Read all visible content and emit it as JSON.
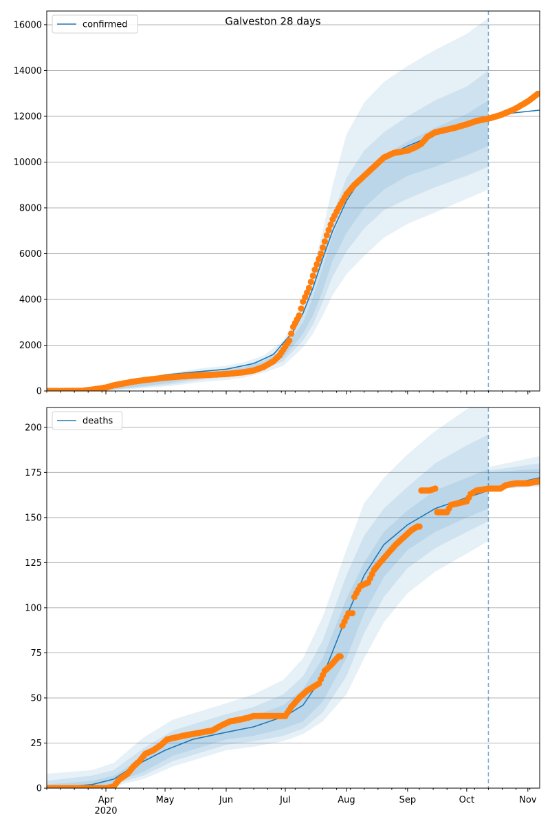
{
  "figure_title": "Galveston 28 days",
  "chart_data": [
    {
      "type": "line",
      "legend": "confirmed",
      "legend_position": "top-left",
      "grid": "horizontal",
      "ylim": [
        0,
        16600
      ],
      "yticks": [
        0,
        2000,
        4000,
        6000,
        8000,
        10000,
        12000,
        14000,
        16000
      ],
      "x_range": [
        "2020-03-02",
        "2020-11-07"
      ],
      "forecast_date": "2020-10-12",
      "colors": {
        "model": "#1f77b4",
        "observed": "#ff7f0e",
        "band": "#1f77b4"
      },
      "model": [
        [
          "2020-03-02",
          0
        ],
        [
          "2020-03-15",
          10
        ],
        [
          "2020-03-25",
          80
        ],
        [
          "2020-04-05",
          250
        ],
        [
          "2020-04-15",
          450
        ],
        [
          "2020-05-01",
          700
        ],
        [
          "2020-05-15",
          820
        ],
        [
          "2020-06-01",
          950
        ],
        [
          "2020-06-15",
          1200
        ],
        [
          "2020-06-25",
          1600
        ],
        [
          "2020-07-05",
          2600
        ],
        [
          "2020-07-10",
          3400
        ],
        [
          "2020-07-15",
          4500
        ],
        [
          "2020-07-20",
          5800
        ],
        [
          "2020-07-25",
          7000
        ],
        [
          "2020-08-01",
          8300
        ],
        [
          "2020-08-10",
          9500
        ],
        [
          "2020-08-20",
          10200
        ],
        [
          "2020-09-01",
          10700
        ],
        [
          "2020-09-15",
          11200
        ],
        [
          "2020-10-01",
          11700
        ],
        [
          "2020-10-12",
          11950
        ],
        [
          "2020-10-25",
          12150
        ],
        [
          "2020-11-07",
          12270
        ]
      ],
      "bands": [
        {
          "lower": [
            0,
            0,
            40,
            120,
            230,
            400,
            480,
            580,
            800,
            1100,
            1900,
            2500,
            3300,
            4200,
            5100,
            5900,
            6700,
            7300,
            7800,
            8400,
            8800,
            9000
          ],
          "upper": [
            0,
            60,
            280,
            550,
            800,
            1000,
            1100,
            1250,
            1550,
            2200,
            3900,
            5300,
            7000,
            9000,
            11200,
            12600,
            13500,
            14200,
            14900,
            15600,
            16300,
            16800
          ]
        },
        {
          "lower": [
            0,
            0,
            55,
            170,
            300,
            500,
            600,
            720,
            960,
            1300,
            2200,
            2900,
            3900,
            5000,
            6100,
            7100,
            7900,
            8400,
            8900,
            9400,
            9800,
            9900
          ],
          "upper": [
            0,
            40,
            200,
            440,
            660,
            880,
            990,
            1130,
            1400,
            1950,
            3400,
            4600,
            6100,
            7700,
            9300,
            10500,
            11300,
            12000,
            12700,
            13300,
            14000,
            14600
          ]
        },
        {
          "lower": [
            0,
            0,
            70,
            210,
            380,
            600,
            720,
            850,
            1100,
            1450,
            2500,
            3300,
            4400,
            5700,
            6900,
            8000,
            8800,
            9400,
            9800,
            10300,
            10700,
            10900
          ],
          "upper": [
            0,
            25,
            150,
            350,
            560,
            780,
            900,
            1030,
            1300,
            1800,
            3000,
            4100,
            5400,
            6800,
            8200,
            9500,
            10300,
            10900,
            11500,
            12100,
            12700,
            13200
          ]
        }
      ],
      "band_dates": [
        "2020-03-02",
        "2020-03-20",
        "2020-04-05",
        "2020-04-20",
        "2020-05-05",
        "2020-05-20",
        "2020-06-01",
        "2020-06-10",
        "2020-06-20",
        "2020-06-30",
        "2020-07-10",
        "2020-07-15",
        "2020-07-20",
        "2020-07-25",
        "2020-08-01",
        "2020-08-10",
        "2020-08-20",
        "2020-09-01",
        "2020-09-15",
        "2020-10-01",
        "2020-10-12",
        "2020-10-12"
      ],
      "observed": [
        [
          "2020-03-02",
          0
        ],
        [
          "2020-03-10",
          0
        ],
        [
          "2020-03-20",
          10
        ],
        [
          "2020-03-25",
          60
        ],
        [
          "2020-04-01",
          150
        ],
        [
          "2020-04-05",
          250
        ],
        [
          "2020-04-10",
          330
        ],
        [
          "2020-04-15",
          410
        ],
        [
          "2020-04-20",
          470
        ],
        [
          "2020-04-25",
          520
        ],
        [
          "2020-05-01",
          580
        ],
        [
          "2020-05-10",
          640
        ],
        [
          "2020-05-20",
          690
        ],
        [
          "2020-06-01",
          740
        ],
        [
          "2020-06-10",
          820
        ],
        [
          "2020-06-15",
          900
        ],
        [
          "2020-06-20",
          1050
        ],
        [
          "2020-06-25",
          1300
        ],
        [
          "2020-06-28",
          1550
        ],
        [
          "2020-07-01",
          1950
        ],
        [
          "2020-07-03",
          2200
        ],
        [
          "2020-07-05",
          2800
        ],
        [
          "2020-07-08",
          3300
        ],
        [
          "2020-07-10",
          3900
        ],
        [
          "2020-07-13",
          4500
        ],
        [
          "2020-07-16",
          5300
        ],
        [
          "2020-07-19",
          6000
        ],
        [
          "2020-07-22",
          6800
        ],
        [
          "2020-07-25",
          7500
        ],
        [
          "2020-07-28",
          8000
        ],
        [
          "2020-08-01",
          8600
        ],
        [
          "2020-08-05",
          9000
        ],
        [
          "2020-08-10",
          9400
        ],
        [
          "2020-08-15",
          9800
        ],
        [
          "2020-08-20",
          10200
        ],
        [
          "2020-08-25",
          10400
        ],
        [
          "2020-09-01",
          10500
        ],
        [
          "2020-09-05",
          10650
        ],
        [
          "2020-09-08",
          10800
        ],
        [
          "2020-09-11",
          11100
        ],
        [
          "2020-09-15",
          11300
        ],
        [
          "2020-09-20",
          11400
        ],
        [
          "2020-09-25",
          11500
        ],
        [
          "2020-10-01",
          11650
        ],
        [
          "2020-10-06",
          11800
        ],
        [
          "2020-10-12",
          11900
        ],
        [
          "2020-10-18",
          12050
        ],
        [
          "2020-10-25",
          12300
        ],
        [
          "2020-11-01",
          12650
        ],
        [
          "2020-11-06",
          12980
        ]
      ]
    },
    {
      "type": "line",
      "legend": "deaths",
      "legend_position": "top-left",
      "grid": "horizontal",
      "ylim": [
        0,
        211
      ],
      "yticks": [
        0,
        25,
        50,
        75,
        100,
        125,
        150,
        175,
        200
      ],
      "x_range": [
        "2020-03-02",
        "2020-11-07"
      ],
      "xticks": [
        {
          "date": "2020-04-01",
          "label": "Apr"
        },
        {
          "date": "2020-05-01",
          "label": "May"
        },
        {
          "date": "2020-06-01",
          "label": "Jun"
        },
        {
          "date": "2020-07-01",
          "label": "Jul"
        },
        {
          "date": "2020-08-01",
          "label": "Aug"
        },
        {
          "date": "2020-09-01",
          "label": "Sep"
        },
        {
          "date": "2020-10-01",
          "label": "Oct"
        },
        {
          "date": "2020-11-01",
          "label": "Nov"
        }
      ],
      "year_label": "2020",
      "forecast_date": "2020-10-12",
      "colors": {
        "model": "#1f77b4",
        "observed": "#ff7f0e",
        "band": "#1f77b4"
      },
      "model": [
        [
          "2020-03-02",
          0
        ],
        [
          "2020-03-25",
          2
        ],
        [
          "2020-04-05",
          5
        ],
        [
          "2020-04-15",
          12
        ],
        [
          "2020-05-01",
          21
        ],
        [
          "2020-05-15",
          27
        ],
        [
          "2020-06-01",
          31
        ],
        [
          "2020-06-15",
          34
        ],
        [
          "2020-07-01",
          40
        ],
        [
          "2020-07-10",
          46
        ],
        [
          "2020-07-20",
          62
        ],
        [
          "2020-08-01",
          95
        ],
        [
          "2020-08-10",
          118
        ],
        [
          "2020-08-20",
          135
        ],
        [
          "2020-09-01",
          146
        ],
        [
          "2020-09-15",
          155
        ],
        [
          "2020-10-01",
          161
        ],
        [
          "2020-10-12",
          165
        ],
        [
          "2020-10-25",
          169
        ],
        [
          "2020-11-07",
          172
        ]
      ],
      "bands": [
        {
          "lower": [
            0,
            0,
            1,
            5,
            12,
            17,
            21,
            23,
            26,
            30,
            37,
            52,
            72,
            92,
            108,
            120,
            130,
            137,
            165,
            168
          ],
          "upper": [
            8,
            10,
            14,
            28,
            38,
            43,
            47,
            52,
            60,
            72,
            95,
            132,
            158,
            172,
            185,
            198,
            210,
            215,
            178,
            184
          ]
        },
        {
          "lower": [
            0,
            0,
            2,
            7,
            15,
            20,
            24,
            26,
            29,
            33,
            42,
            62,
            86,
            106,
            122,
            133,
            142,
            148,
            166,
            167
          ],
          "upper": [
            4,
            7,
            10,
            22,
            32,
            37,
            41,
            45,
            52,
            62,
            82,
            118,
            140,
            155,
            167,
            180,
            190,
            196,
            176,
            180
          ]
        },
        {
          "lower": [
            0,
            0,
            3,
            9,
            18,
            23,
            27,
            29,
            33,
            37,
            48,
            72,
            97,
            117,
            132,
            142,
            150,
            155,
            167,
            168
          ],
          "upper": [
            2,
            4,
            7,
            17,
            27,
            32,
            36,
            40,
            46,
            55,
            72,
            105,
            125,
            142,
            154,
            165,
            172,
            177,
            175,
            177
          ]
        }
      ],
      "band_dates": [
        "2020-03-02",
        "2020-03-25",
        "2020-04-05",
        "2020-04-20",
        "2020-05-05",
        "2020-05-20",
        "2020-06-01",
        "2020-06-15",
        "2020-06-30",
        "2020-07-10",
        "2020-07-20",
        "2020-08-01",
        "2020-08-10",
        "2020-08-20",
        "2020-09-01",
        "2020-09-15",
        "2020-10-01",
        "2020-10-12",
        "2020-10-12",
        "2020-11-07"
      ],
      "observed": [
        [
          "2020-03-02",
          0
        ],
        [
          "2020-03-15",
          0
        ],
        [
          "2020-04-01",
          0
        ],
        [
          "2020-04-05",
          1
        ],
        [
          "2020-04-08",
          5
        ],
        [
          "2020-04-12",
          8
        ],
        [
          "2020-04-15",
          12
        ],
        [
          "2020-04-18",
          15
        ],
        [
          "2020-04-21",
          19
        ],
        [
          "2020-04-25",
          21
        ],
        [
          "2020-04-29",
          24
        ],
        [
          "2020-05-02",
          27
        ],
        [
          "2020-05-06",
          28
        ],
        [
          "2020-05-10",
          29
        ],
        [
          "2020-05-15",
          30
        ],
        [
          "2020-05-20",
          31
        ],
        [
          "2020-05-25",
          32
        ],
        [
          "2020-05-30",
          35
        ],
        [
          "2020-06-03",
          37
        ],
        [
          "2020-06-08",
          38
        ],
        [
          "2020-06-12",
          39
        ],
        [
          "2020-06-15",
          40
        ],
        [
          "2020-06-25",
          40
        ],
        [
          "2020-07-01",
          40
        ],
        [
          "2020-07-04",
          45
        ],
        [
          "2020-07-08",
          50
        ],
        [
          "2020-07-12",
          54
        ],
        [
          "2020-07-15",
          56
        ],
        [
          "2020-07-18",
          58
        ],
        [
          "2020-07-21",
          65
        ],
        [
          "2020-07-24",
          68
        ],
        [
          "2020-07-28",
          73
        ],
        [
          "2020-07-30",
          90
        ],
        [
          "2020-08-02",
          97
        ],
        [
          "2020-08-05",
          106
        ],
        [
          "2020-08-08",
          112
        ],
        [
          "2020-08-12",
          114
        ],
        [
          "2020-08-15",
          121
        ],
        [
          "2020-08-18",
          125
        ],
        [
          "2020-08-22",
          130
        ],
        [
          "2020-08-26",
          135
        ],
        [
          "2020-08-30",
          139
        ],
        [
          "2020-09-03",
          143
        ],
        [
          "2020-09-06",
          145
        ],
        [
          "2020-09-08",
          165
        ],
        [
          "2020-09-12",
          165
        ],
        [
          "2020-09-15",
          166
        ],
        [
          "2020-09-16",
          153
        ],
        [
          "2020-09-21",
          153
        ],
        [
          "2020-09-23",
          157
        ],
        [
          "2020-09-27",
          158
        ],
        [
          "2020-10-01",
          159
        ],
        [
          "2020-10-03",
          163
        ],
        [
          "2020-10-06",
          165
        ],
        [
          "2020-10-12",
          166
        ],
        [
          "2020-10-18",
          166
        ],
        [
          "2020-10-21",
          168
        ],
        [
          "2020-10-26",
          169
        ],
        [
          "2020-11-01",
          169
        ],
        [
          "2020-11-06",
          170
        ]
      ]
    }
  ]
}
